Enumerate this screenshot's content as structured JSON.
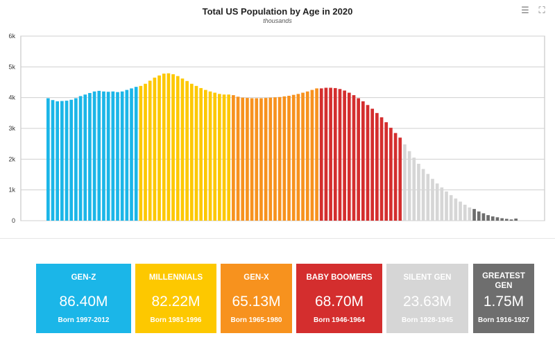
{
  "chart_data": {
    "type": "bar",
    "title": "Total US Population by Age in 2020",
    "subtitle": "thousands",
    "xlabel": "",
    "ylabel": "",
    "ylim": [
      0,
      6000
    ],
    "yticks": [
      0,
      1000,
      2000,
      3000,
      4000,
      5000,
      6000
    ],
    "ytick_labels": [
      "0",
      "1k",
      "2k",
      "3k",
      "4k",
      "5k",
      "6k"
    ],
    "grid": true,
    "series": [
      {
        "name": "GEN-Z",
        "color": "#1bb6e8",
        "values": [
          3980,
          3920,
          3880,
          3890,
          3900,
          3930,
          3980,
          4050,
          4100,
          4150,
          4200,
          4220,
          4200,
          4190,
          4200,
          4180,
          4200,
          4250,
          4300,
          4350
        ]
      },
      {
        "name": "MILLENNIALS",
        "color": "#fdc800",
        "values": [
          4380,
          4450,
          4550,
          4650,
          4720,
          4780,
          4790,
          4760,
          4700,
          4620,
          4540,
          4450,
          4380,
          4310,
          4250,
          4200,
          4160,
          4120,
          4100,
          4100
        ]
      },
      {
        "name": "GEN-X",
        "color": "#f7921e",
        "values": [
          4080,
          4030,
          4000,
          3990,
          3980,
          3980,
          3980,
          3990,
          4000,
          4010,
          4020,
          4040,
          4060,
          4090,
          4120,
          4160,
          4200,
          4250,
          4300
        ]
      },
      {
        "name": "BABY BOOMERS",
        "color": "#d42e2e",
        "values": [
          4300,
          4320,
          4320,
          4310,
          4280,
          4230,
          4160,
          4080,
          3980,
          3880,
          3760,
          3640,
          3500,
          3360,
          3200,
          3020,
          2850,
          2700
        ]
      },
      {
        "name": "SILENT GEN",
        "color": "#d6d6d6",
        "values": [
          2480,
          2260,
          2050,
          1850,
          1680,
          1520,
          1360,
          1210,
          1080,
          950,
          830,
          720,
          620,
          520,
          430
        ]
      },
      {
        "name": "GREATEST GEN",
        "color": "#6e6e6e",
        "values": [
          380,
          300,
          240,
          180,
          140,
          110,
          80,
          60,
          40,
          70
        ]
      }
    ]
  },
  "summary_cards": [
    {
      "label": "GEN-Z",
      "value": "86.40M",
      "born": "Born 1997-2012",
      "color": "#1bb6e8"
    },
    {
      "label": "MILLENNIALS",
      "value": "82.22M",
      "born": "Born 1981-1996",
      "color": "#fdc800"
    },
    {
      "label": "GEN-X",
      "value": "65.13M",
      "born": "Born 1965-1980",
      "color": "#f7921e"
    },
    {
      "label": "BABY BOOMERS",
      "value": "68.70M",
      "born": "Born 1946-1964",
      "color": "#d42e2e"
    },
    {
      "label": "SILENT GEN",
      "value": "23.63M",
      "born": "Born 1928-1945",
      "color": "#d6d6d6"
    },
    {
      "label": "GREATEST GEN",
      "value": "1.75M",
      "born": "Born 1916-1927",
      "color": "#6e6e6e"
    }
  ],
  "toolbar": {
    "menu_icon": "menu-icon",
    "fullscreen_icon": "fullscreen-icon"
  }
}
